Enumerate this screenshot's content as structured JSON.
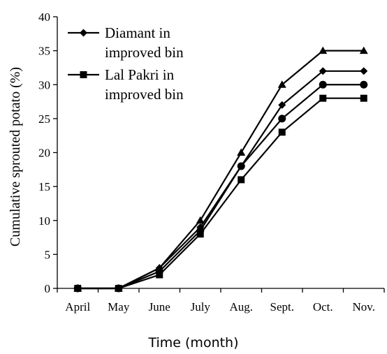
{
  "chart_data": {
    "type": "line",
    "categories": [
      "April",
      "May",
      "June",
      "July",
      "Aug.",
      "Sept.",
      "Oct.",
      "Nov."
    ],
    "xlabel": "Time (month)",
    "ylabel": "Cumulative sprouted potato (%)",
    "ylim": [
      0,
      40
    ],
    "yticks": [
      0,
      5,
      10,
      15,
      20,
      25,
      30,
      35,
      40
    ],
    "grid": false,
    "legend_position": "top-left",
    "series": [
      {
        "name": "Diamant in improved bin",
        "marker": "diamond",
        "color": "#000000",
        "values": [
          0,
          0,
          3,
          9,
          18,
          27,
          32,
          32
        ]
      },
      {
        "name": "Lal Pakri in improved bin",
        "marker": "square",
        "color": "#000000",
        "values": [
          0,
          0,
          2,
          8,
          16,
          23,
          28,
          28
        ]
      },
      {
        "name": "",
        "marker": "triangle",
        "color": "#000000",
        "values": [
          0,
          0,
          3,
          10,
          20,
          30,
          35,
          35
        ]
      },
      {
        "name": "",
        "marker": "circle",
        "color": "#000000",
        "values": [
          0,
          0,
          2.5,
          8.5,
          18,
          25,
          30,
          30
        ]
      }
    ],
    "legend": [
      {
        "label_lines": [
          "Diamant in",
          "improved bin"
        ],
        "marker": "diamond"
      },
      {
        "label_lines": [
          "Lal Pakri in",
          "improved bin"
        ],
        "marker": "square"
      }
    ]
  }
}
